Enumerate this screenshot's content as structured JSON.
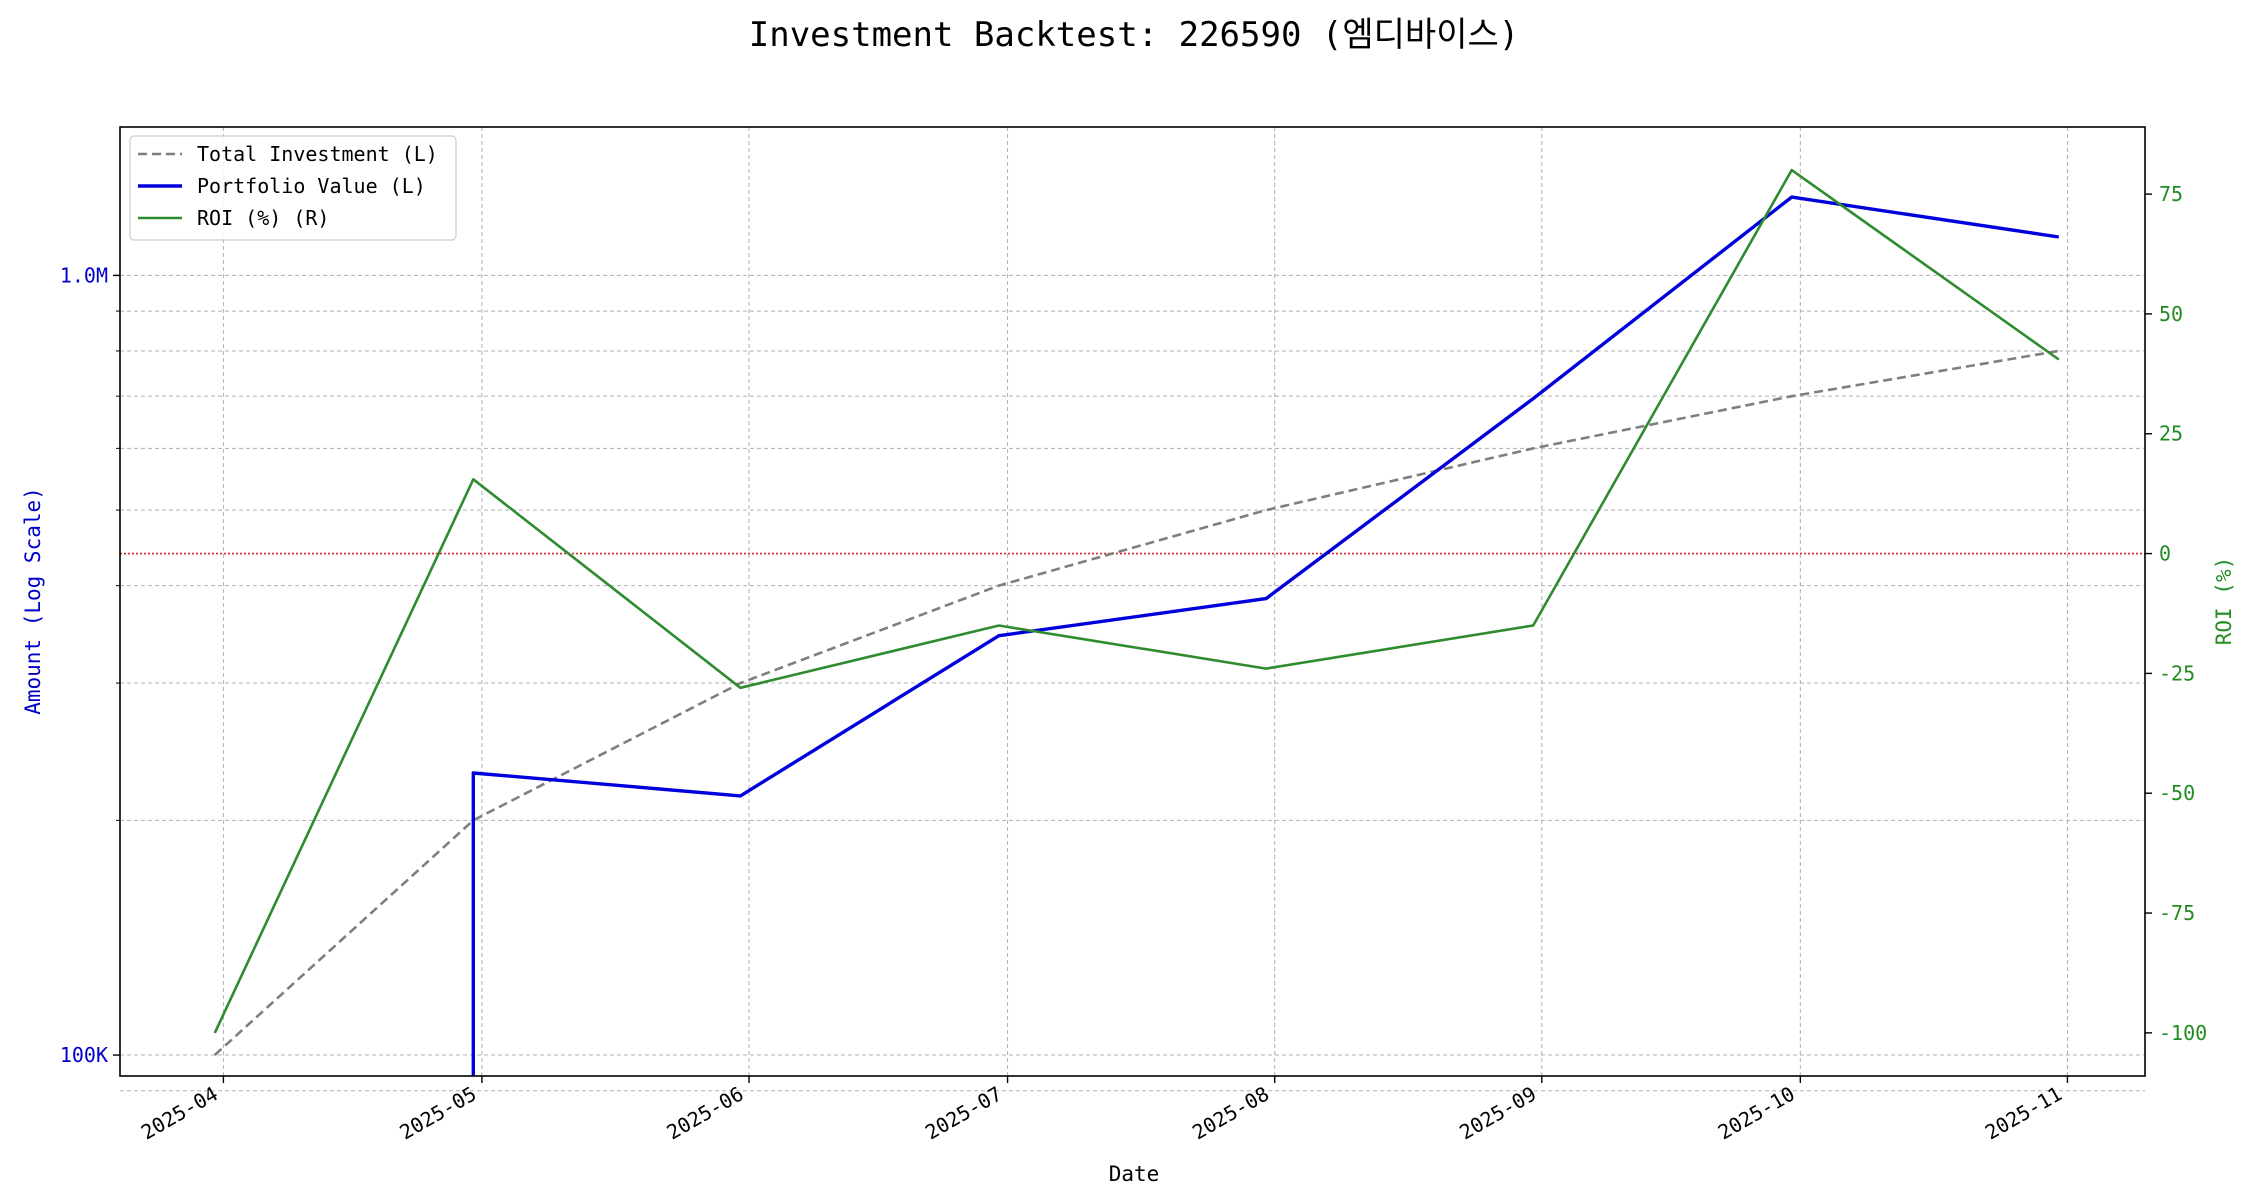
{
  "chart_data": {
    "type": "line",
    "title": "Investment Backtest: 226590 (엠디바이스)",
    "xlabel": "Date",
    "ylabel_left": "Amount (Log Scale)",
    "ylabel_right": "ROI (%)",
    "y_left_scale": "log",
    "y_left_lim": [
      94000,
      1550000
    ],
    "y_right_lim": [
      -109,
      89
    ],
    "x_ticks": [
      "2025-04",
      "2025-05",
      "2025-06",
      "2025-07",
      "2025-08",
      "2025-09",
      "2025-10",
      "2025-11"
    ],
    "x_tick_dates": [
      "2025-04-01",
      "2025-05-01",
      "2025-06-01",
      "2025-07-01",
      "2025-08-01",
      "2025-09-01",
      "2025-10-01",
      "2025-11-01"
    ],
    "x_lim": [
      "2025-03-20",
      "2025-11-10"
    ],
    "y_left_ticks": [
      {
        "value": 100000,
        "label": "100K"
      },
      {
        "value": 1000000,
        "label": "1.0M"
      }
    ],
    "y_left_minor_grid": [
      200000,
      300000,
      400000,
      500000,
      600000,
      700000,
      800000,
      900000
    ],
    "y_right_ticks": [
      -100,
      -75,
      -50,
      -25,
      0,
      25,
      50,
      75
    ],
    "zero_line": {
      "axis": "right",
      "value": 0,
      "color": "#d62728",
      "style": "dotted"
    },
    "grid": true,
    "legend_position": "top-left",
    "series": [
      {
        "name": "Total Investment (L)",
        "axis": "left",
        "color": "#7f7f7f",
        "style": "dashed",
        "x": [
          "2025-03-31",
          "2025-04-30",
          "2025-05-31",
          "2025-06-30",
          "2025-07-31",
          "2025-08-31",
          "2025-09-30",
          "2025-10-31"
        ],
        "values": [
          100000,
          200000,
          300000,
          400000,
          500000,
          600000,
          700000,
          800000
        ]
      },
      {
        "name": "Portfolio Value (L)",
        "axis": "left",
        "color": "#0000dd",
        "style": "solid",
        "x": [
          "2025-04-30",
          "2025-04-30",
          "2025-05-31",
          "2025-06-30",
          "2025-07-31",
          "2025-08-31",
          "2025-09-30",
          "2025-10-31"
        ],
        "values": [
          90000,
          230000,
          215000,
          345000,
          385000,
          695000,
          1260000,
          1120000
        ]
      },
      {
        "name": "ROI (%) (R)",
        "axis": "right",
        "color": "#2e8b2e",
        "style": "solid",
        "x": [
          "2025-03-31",
          "2025-04-30",
          "2025-05-31",
          "2025-06-30",
          "2025-07-31",
          "2025-08-31",
          "2025-09-30",
          "2025-10-31"
        ],
        "values": [
          -100,
          15.5,
          -28,
          -15,
          -24,
          -15,
          80,
          40.5
        ]
      }
    ]
  },
  "colors": {
    "left_axis": "#0000cc",
    "right_axis": "#228b22",
    "grid": "#b0b0b0"
  }
}
